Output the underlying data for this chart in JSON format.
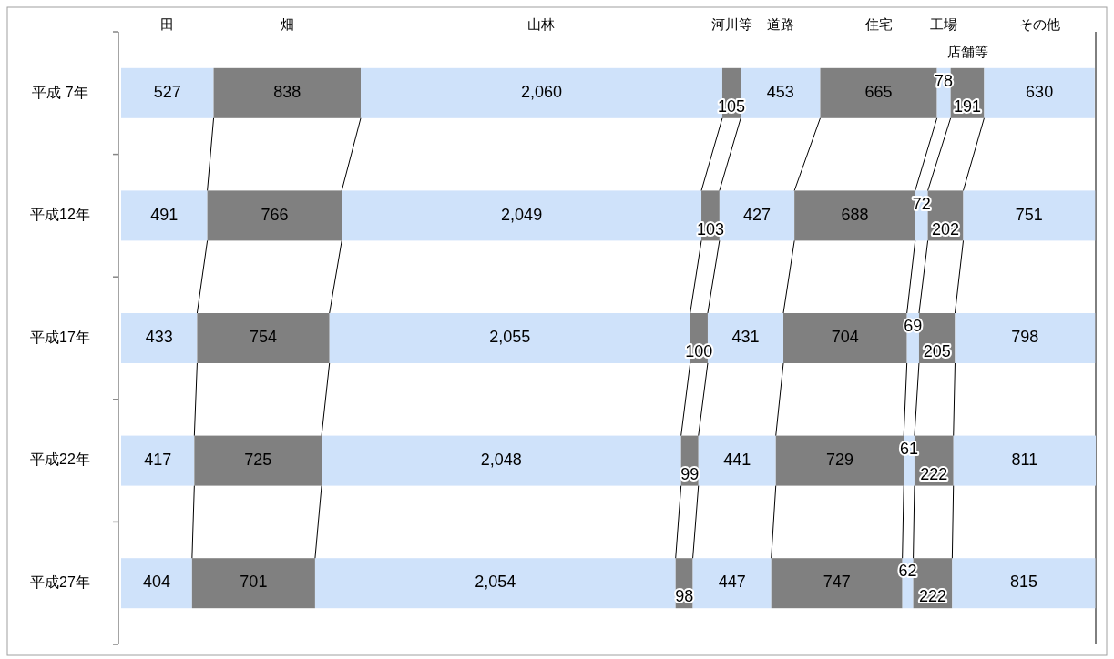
{
  "chart_data": {
    "type": "bar",
    "orientation": "horizontal",
    "stacked": true,
    "legend": "top",
    "categories": [
      "平成 7年",
      "平成12年",
      "平成17年",
      "平成22年",
      "平成27年"
    ],
    "series": [
      {
        "name": "田",
        "color": "#cfe2fa",
        "values": [
          527,
          491,
          433,
          417,
          404
        ],
        "value_labels": [
          "527",
          "491",
          "433",
          "417",
          "404"
        ]
      },
      {
        "name": "畑",
        "color": "#808080",
        "values": [
          838,
          766,
          754,
          725,
          701
        ],
        "value_labels": [
          "838",
          "766",
          "754",
          "725",
          "701"
        ]
      },
      {
        "name": "山林",
        "color": "#cfe2fa",
        "values": [
          2060,
          2049,
          2055,
          2048,
          2054
        ],
        "value_labels": [
          "2,060",
          "2,049",
          "2,055",
          "2,048",
          "2,054"
        ]
      },
      {
        "name": "河川等",
        "color": "#808080",
        "values": [
          105,
          103,
          100,
          99,
          98
        ],
        "value_labels": [
          "105",
          "103",
          "100",
          "99",
          "98"
        ]
      },
      {
        "name": "道路",
        "color": "#cfe2fa",
        "values": [
          453,
          427,
          431,
          441,
          447
        ],
        "value_labels": [
          "453",
          "427",
          "431",
          "441",
          "447"
        ]
      },
      {
        "name": "住宅",
        "color": "#808080",
        "values": [
          665,
          688,
          704,
          729,
          747
        ],
        "value_labels": [
          "665",
          "688",
          "704",
          "729",
          "747"
        ]
      },
      {
        "name": "工場",
        "color": "#cfe2fa",
        "values": [
          78,
          72,
          69,
          61,
          62
        ],
        "value_labels": [
          "78",
          "72",
          "69",
          "61",
          "62"
        ]
      },
      {
        "name": "店舗等",
        "color": "#808080",
        "values": [
          191,
          202,
          205,
          222,
          222
        ],
        "value_labels": [
          "191",
          "202",
          "205",
          "222",
          "222"
        ]
      },
      {
        "name": "その他",
        "color": "#cfe2fa",
        "values": [
          630,
          751,
          798,
          811,
          815
        ],
        "value_labels": [
          "630",
          "751",
          "798",
          "811",
          "815"
        ]
      }
    ]
  }
}
